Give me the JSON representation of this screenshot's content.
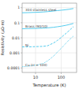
{
  "chart_data": {
    "type": "line",
    "title": "",
    "xlabel": "Temperature (K)",
    "ylabel": "Resistivity (μΩ·m)",
    "log": true,
    "grid": true,
    "color": "#55ccee",
    "xlim": [
      3,
      400
    ],
    "ylim": [
      5e-05,
      2.0
    ],
    "xticks": [
      10,
      100
    ],
    "yticks": [
      0.0001,
      0.001,
      0.01,
      0.1,
      1
    ],
    "x": [
      3,
      5,
      10,
      20,
      30,
      50,
      70,
      100,
      150,
      200,
      300
    ],
    "series": [
      {
        "line_style": "solid",
        "values": [
          0.46,
          0.47,
          0.49,
          0.52,
          0.55,
          0.6,
          0.64,
          0.68,
          0.73,
          0.78,
          0.88
        ]
      },
      {
        "line_style": "solid",
        "values": [
          0.04,
          0.041,
          0.042,
          0.044,
          0.046,
          0.05,
          0.054,
          0.059,
          0.067,
          0.075,
          0.09
        ]
      },
      {
        "line_style": "dashed",
        "values": [
          0.0025,
          0.0025,
          0.0026,
          0.0027,
          0.003,
          0.0045,
          0.0065,
          0.0105,
          0.019,
          0.029,
          0.055
        ]
      },
      {
        "line_style": "dotted",
        "values": [
          0.00012,
          0.00013,
          0.00015,
          0.0002,
          0.0003,
          0.0006,
          0.0011,
          0.002,
          0.0042,
          0.007,
          0.013
        ]
      }
    ],
    "annotations": [
      {
        "text": "304 stainless steel",
        "x": 4.0,
        "y": 0.56
      },
      {
        "text": "Brass (90/10)",
        "x": 4.0,
        "y": 0.046
      },
      {
        "text": "Ni",
        "x": 4.0,
        "y": 0.00255
      },
      {
        "text": "Cu (rr = 100)",
        "x": 4.0,
        "y": 0.000125
      }
    ]
  }
}
